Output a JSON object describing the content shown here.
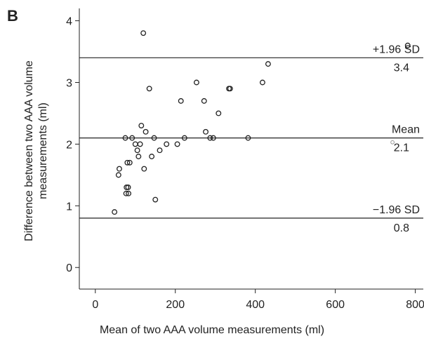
{
  "panel_label": "B",
  "chart_data": {
    "type": "scatter",
    "title": "",
    "xlabel": "Mean of two AAA volume measurements (ml)",
    "ylabel_lines": [
      "Difference between two AAA volume",
      "measurements (ml)"
    ],
    "xlim": [
      -40,
      820
    ],
    "ylim": [
      -0.35,
      4.2
    ],
    "x_ticks": [
      0,
      200,
      400,
      600,
      800
    ],
    "y_ticks": [
      0,
      1,
      2,
      3,
      4
    ],
    "grid": false,
    "points": [
      {
        "x": 48,
        "y": 0.9
      },
      {
        "x": 58,
        "y": 1.5
      },
      {
        "x": 60,
        "y": 1.6
      },
      {
        "x": 75,
        "y": 2.1
      },
      {
        "x": 77,
        "y": 1.2
      },
      {
        "x": 78,
        "y": 1.3
      },
      {
        "x": 80,
        "y": 1.7
      },
      {
        "x": 82,
        "y": 1.3
      },
      {
        "x": 83,
        "y": 1.2
      },
      {
        "x": 86,
        "y": 1.7
      },
      {
        "x": 92,
        "y": 2.1
      },
      {
        "x": 100,
        "y": 2.0
      },
      {
        "x": 105,
        "y": 1.9
      },
      {
        "x": 108,
        "y": 1.8
      },
      {
        "x": 112,
        "y": 2.0
      },
      {
        "x": 115,
        "y": 2.3
      },
      {
        "x": 120,
        "y": 3.8
      },
      {
        "x": 122,
        "y": 1.6
      },
      {
        "x": 126,
        "y": 2.2
      },
      {
        "x": 135,
        "y": 2.9
      },
      {
        "x": 141,
        "y": 1.8
      },
      {
        "x": 147,
        "y": 2.1
      },
      {
        "x": 150,
        "y": 1.1
      },
      {
        "x": 161,
        "y": 1.9
      },
      {
        "x": 178,
        "y": 2.0
      },
      {
        "x": 205,
        "y": 2.0
      },
      {
        "x": 214,
        "y": 2.7
      },
      {
        "x": 223,
        "y": 2.1
      },
      {
        "x": 253,
        "y": 3.0
      },
      {
        "x": 272,
        "y": 2.7
      },
      {
        "x": 276,
        "y": 2.2
      },
      {
        "x": 287,
        "y": 2.1
      },
      {
        "x": 295,
        "y": 2.1
      },
      {
        "x": 308,
        "y": 2.5
      },
      {
        "x": 334,
        "y": 2.9
      },
      {
        "x": 337,
        "y": 2.9
      },
      {
        "x": 382,
        "y": 2.1
      },
      {
        "x": 418,
        "y": 3.0
      },
      {
        "x": 432,
        "y": 3.3
      },
      {
        "x": 781,
        "y": 3.6
      }
    ],
    "reference_lines": [
      {
        "name": "+1.96 SD",
        "value": 3.4,
        "value_label": "3.4"
      },
      {
        "name": "Mean",
        "value": 2.1,
        "value_label": "2.1"
      },
      {
        "name": "−1.96 SD",
        "value": 0.8,
        "value_label": "0.8"
      }
    ],
    "annotation_dot": {
      "x": 743,
      "y": 2.03
    }
  }
}
